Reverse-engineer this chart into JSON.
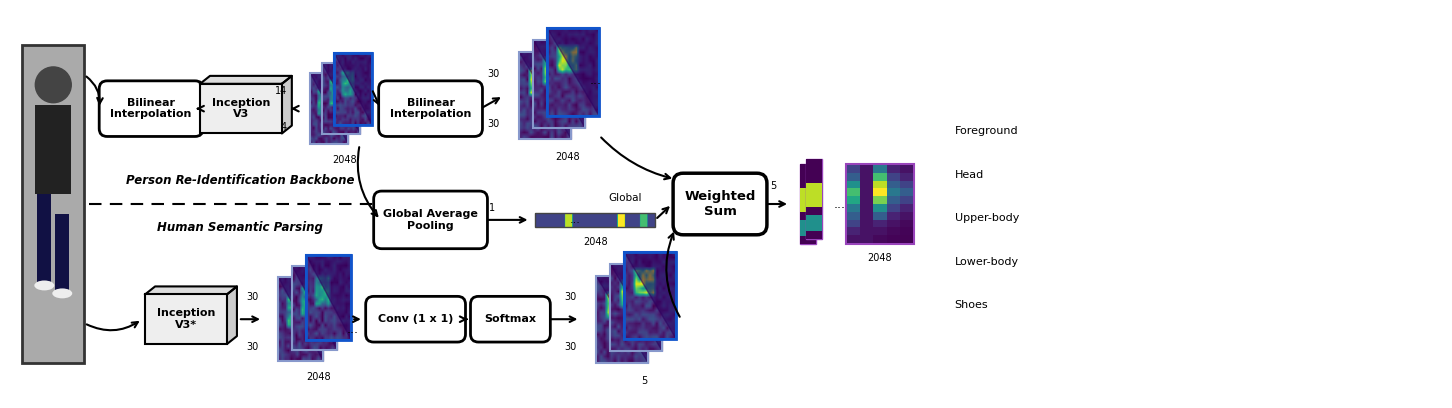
{
  "fig_width": 14.52,
  "fig_height": 4.08,
  "bg_color": "#ffffff",
  "separator_text_top": "Person Re-Identification Backbone",
  "separator_text_bottom": "Human Semantic Parsing",
  "legend_labels": [
    "Foreground",
    "Head",
    "Upper-body",
    "Lower-body",
    "Shoes"
  ]
}
